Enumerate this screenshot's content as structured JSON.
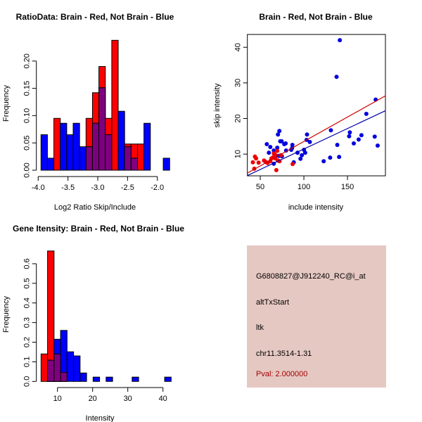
{
  "chart_data": [
    {
      "type": "bar",
      "title": "RatioData: Brain - Red, Not Brain - Blue",
      "xlabel": "Log2 Ratio Skip/Include",
      "ylabel": "Frequency",
      "xlim": [
        -4.0,
        -1.8
      ],
      "ylim": [
        0,
        0.24
      ],
      "xticks": [
        "-4.0",
        "-3.5",
        "-3.0",
        "-2.5",
        "-2.0"
      ],
      "xtick_values": [
        -4.0,
        -3.5,
        -3.0,
        -2.5,
        -2.0
      ],
      "yticks": [
        "0.00",
        "0.05",
        "0.10",
        "0.15",
        "0.20"
      ],
      "ytick_values": [
        0,
        0.05,
        0.1,
        0.15,
        0.2
      ],
      "bin_start": -3.953,
      "bin_width": 0.108,
      "series": [
        {
          "name": "Brain",
          "color": "#ff0000",
          "values": [
            0,
            0,
            0.095,
            0,
            0,
            0,
            0,
            0.095,
            0.142,
            0.19,
            0.095,
            0.238,
            0,
            0.048,
            0.048,
            0.048,
            0,
            0,
            0,
            0
          ]
        },
        {
          "name": "Not Brain",
          "color": "#0000ff",
          "values": [
            0.065,
            0.022,
            0,
            0.086,
            0.065,
            0.086,
            0.043,
            0.043,
            0.086,
            0.151,
            0.065,
            0,
            0.108,
            0.043,
            0.022,
            0,
            0.086,
            0,
            0,
            0.022
          ]
        }
      ],
      "overlap_color": "#7f007f"
    },
    {
      "type": "scatter",
      "title": "Brain - Red, Not Brain - Blue",
      "xlabel": "include intensity",
      "ylabel": "skip intensity",
      "xlim": [
        35.2,
        193.5
      ],
      "ylim": [
        3.9,
        43.6
      ],
      "xticks": [
        "50",
        "100",
        "150"
      ],
      "xtick_values": [
        50,
        100,
        150
      ],
      "yticks": [
        "10",
        "20",
        "30",
        "40"
      ],
      "ytick_values": [
        10,
        20,
        30,
        40
      ],
      "series": [
        {
          "name": "Not Brain",
          "color": "#0000dd",
          "points": [
            [
              141.2,
              42.0
            ],
            [
              137.5,
              31.7
            ],
            [
              182.3,
              25.3
            ],
            [
              171.6,
              21.3
            ],
            [
              131,
              16.7
            ],
            [
              152.7,
              16.1
            ],
            [
              151.9,
              15.0
            ],
            [
              166,
              15.3
            ],
            [
              162.8,
              14.1
            ],
            [
              181.2,
              14.9
            ],
            [
              157.2,
              13.0
            ],
            [
              138.3,
              12.6
            ],
            [
              184.6,
              12.4
            ],
            [
              140.4,
              9.2
            ],
            [
              130.1,
              9.0
            ],
            [
              122.7,
              8.0
            ],
            [
              103.6,
              15.5
            ],
            [
              103.1,
              14.0
            ],
            [
              106.8,
              13.4
            ],
            [
              71.9,
              16.5
            ],
            [
              70.3,
              15.5
            ],
            [
              72.9,
              13.6
            ],
            [
              74.5,
              13.6
            ],
            [
              77.5,
              12.8
            ],
            [
              79.1,
              13.0
            ],
            [
              57.5,
              12.8
            ],
            [
              61.5,
              12.0
            ],
            [
              69.5,
              11.8
            ],
            [
              86.8,
              12.6
            ],
            [
              86.5,
              11.7
            ],
            [
              79.6,
              11.0
            ],
            [
              85.5,
              11.2
            ],
            [
              65.5,
              11.0
            ],
            [
              59.9,
              10.4
            ],
            [
              92.7,
              10.4
            ],
            [
              100.1,
              11.2
            ],
            [
              101.5,
              10.4
            ],
            [
              97.7,
              9.7
            ],
            [
              96.1,
              8.7
            ],
            [
              88.4,
              7.7
            ],
            [
              68.4,
              9.5
            ],
            [
              71.6,
              9.5
            ],
            [
              74.8,
              9.4
            ],
            [
              65.5,
              7.3
            ],
            [
              70.3,
              8.2
            ]
          ],
          "fit": {
            "slope": 0.115,
            "intercept": -0.07
          }
        },
        {
          "name": "Brain",
          "color": "#ee0000",
          "points": [
            [
              41.5,
              7.7
            ],
            [
              43.1,
              5.9
            ],
            [
              43.9,
              9.3
            ],
            [
              45.2,
              8.8
            ],
            [
              48.1,
              7.6
            ],
            [
              54.3,
              8.2
            ],
            [
              56.4,
              7.8
            ],
            [
              58.3,
              7.5
            ],
            [
              61.5,
              8.0
            ],
            [
              62.8,
              8.8
            ],
            [
              64.7,
              9.1
            ],
            [
              65.5,
              10.2
            ],
            [
              66.8,
              9.9
            ],
            [
              67.3,
              8.8
            ],
            [
              69.5,
              10.9
            ],
            [
              68.4,
              5.5
            ],
            [
              70.3,
              8.2
            ],
            [
              72.1,
              8.0
            ],
            [
              73.7,
              9.7
            ],
            [
              87.1,
              7.2
            ]
          ],
          "fit": {
            "slope": 0.137,
            "intercept": -0.15
          }
        }
      ]
    },
    {
      "type": "bar",
      "title": "Gene Itensity: Brain - Red, Not Brain - Blue",
      "xlabel": "Intensity",
      "ylabel": "Frequency",
      "xlim": [
        5,
        43
      ],
      "ylim": [
        0,
        0.665
      ],
      "xticks": [
        "10",
        "20",
        "30",
        "40"
      ],
      "xtick_values": [
        10,
        20,
        30,
        40
      ],
      "yticks": [
        "0.0",
        "0.1",
        "0.2",
        "0.3",
        "0.4",
        "0.5",
        "0.6"
      ],
      "ytick_values": [
        0,
        0.1,
        0.2,
        0.3,
        0.4,
        0.5,
        0.6
      ],
      "bin_start": 5.33,
      "bin_width": 1.85,
      "series": [
        {
          "name": "Brain",
          "color": "#ff0000",
          "values": [
            0.14,
            0.665,
            0.14,
            0.046,
            0,
            0,
            0,
            0,
            0,
            0,
            0,
            0,
            0,
            0,
            0,
            0,
            0,
            0,
            0,
            0
          ]
        },
        {
          "name": "Not Brain",
          "color": "#0000ff",
          "values": [
            0,
            0.108,
            0.215,
            0.26,
            0.151,
            0.13,
            0.043,
            0,
            0.022,
            0,
            0.022,
            0,
            0,
            0,
            0.022,
            0,
            0,
            0,
            0,
            0.022
          ]
        }
      ],
      "overlap_color": "#7f007f"
    }
  ],
  "info": {
    "probe": "G6808827@J912240_RC@i_at",
    "event": "altTxStart",
    "gene": "ltk",
    "location": "chr11.3514-1.31",
    "pval": "Pval: 2.000000",
    "background": "#e6c8c2",
    "pval_color": "#a00000"
  }
}
